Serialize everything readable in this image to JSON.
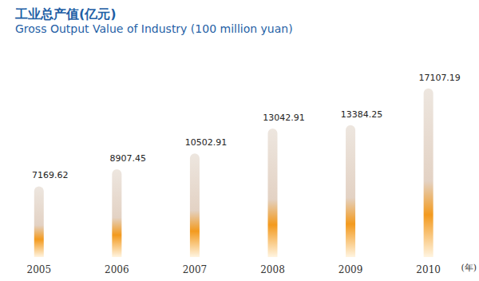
{
  "chart_data": {
    "type": "bar",
    "title": "工业总产值(亿元)",
    "subtitle": "Gross Output Value of Industry (100 million yuan)",
    "xlabel": "(年)",
    "categories": [
      "2005",
      "2006",
      "2007",
      "2008",
      "2009",
      "2010"
    ],
    "values": [
      7169.62,
      8907.45,
      10502.91,
      13042.91,
      13384.25,
      17107.19
    ],
    "color": "#f39a1e",
    "ylim": [
      0,
      20000
    ],
    "grid": false,
    "data_labels": true,
    "tick_labels": "x"
  }
}
